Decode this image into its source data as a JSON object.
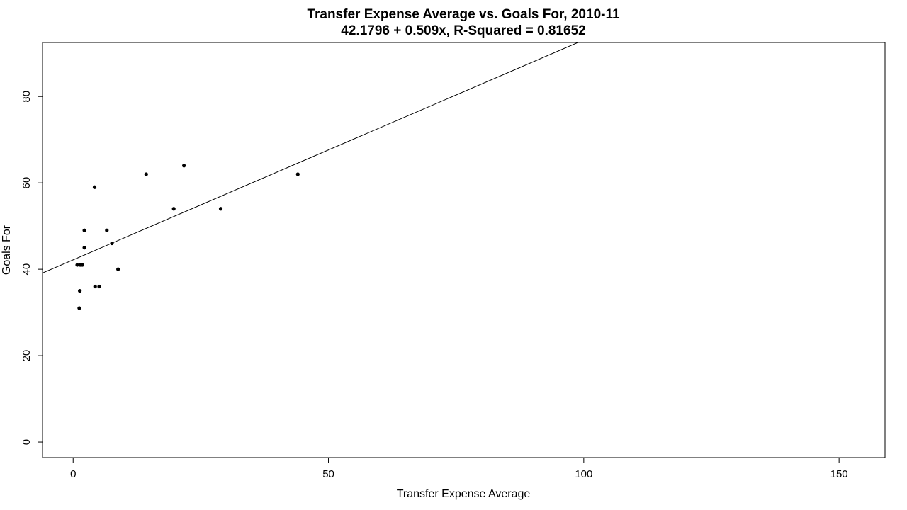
{
  "chart_data": {
    "type": "scatter",
    "title": "Transfer Expense Average vs. Goals For, 2010-11",
    "subtitle": "42.1796 + 0.509x, R-Squared = 0.81652",
    "xlabel": "Transfer Expense Average",
    "ylabel": "Goals For",
    "xlim": [
      -6,
      159
    ],
    "ylim": [
      -3.6,
      92.5
    ],
    "xticks": [
      0,
      50,
      100,
      150
    ],
    "yticks": [
      0,
      20,
      40,
      60,
      80
    ],
    "grid": false,
    "regression": {
      "intercept": 42.1796,
      "slope": 0.509
    },
    "points": [
      {
        "x": 0.8,
        "y": 41
      },
      {
        "x": 1.2,
        "y": 31
      },
      {
        "x": 1.4,
        "y": 41
      },
      {
        "x": 1.3,
        "y": 35
      },
      {
        "x": 1.8,
        "y": 41
      },
      {
        "x": 2.2,
        "y": 45
      },
      {
        "x": 2.2,
        "y": 49
      },
      {
        "x": 4.2,
        "y": 59
      },
      {
        "x": 4.3,
        "y": 36
      },
      {
        "x": 5.1,
        "y": 36
      },
      {
        "x": 6.6,
        "y": 49
      },
      {
        "x": 7.6,
        "y": 46
      },
      {
        "x": 8.8,
        "y": 40
      },
      {
        "x": 14.3,
        "y": 62
      },
      {
        "x": 19.7,
        "y": 54
      },
      {
        "x": 21.7,
        "y": 64
      },
      {
        "x": 28.9,
        "y": 54
      },
      {
        "x": 44.0,
        "y": 62
      }
    ]
  }
}
